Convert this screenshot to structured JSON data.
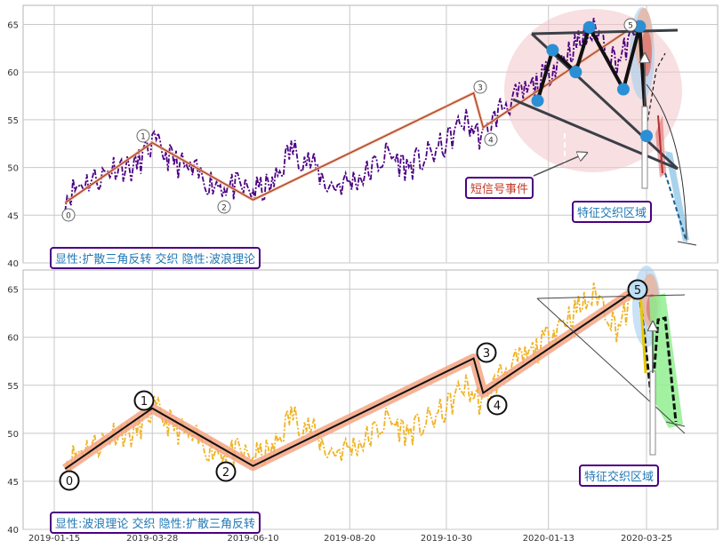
{
  "colors": {
    "grid": "#c8c8c8",
    "frame": "#b4b4b4",
    "price_top": "#4b0082",
    "price_bottom": "#f0b428",
    "wave_fill": "#f4a582",
    "triangle": "#3a3f46",
    "pivot": "#2b8fd6",
    "ellipse": "#f2c4c8",
    "box_border": "#4b0082",
    "box_text_blue": "#1f77b4",
    "box_text_red": "#c0392b",
    "green_zone": "#90ee90"
  },
  "x_tick_labels": [
    "2019-01-15",
    "2019-03-28",
    "2019-06-10",
    "2019-08-20",
    "2019-10-30",
    "2020-01-13",
    "2020-03-25"
  ],
  "chart_data": [
    {
      "type": "line",
      "panel": "top",
      "ylim": [
        40,
        67
      ],
      "y_ticks": [
        40,
        45,
        50,
        55,
        60,
        65
      ],
      "price_series": {
        "x": [
          "2019-01-23",
          "2019-02-05",
          "2019-02-18",
          "2019-03-01",
          "2019-03-14",
          "2019-03-28",
          "2019-04-10",
          "2019-04-25",
          "2019-05-10",
          "2019-05-24",
          "2019-06-10",
          "2019-06-24",
          "2019-07-08",
          "2019-07-22",
          "2019-08-05",
          "2019-08-20",
          "2019-09-03",
          "2019-09-17",
          "2019-10-01",
          "2019-10-15",
          "2019-10-30",
          "2019-11-12",
          "2019-11-26",
          "2019-12-10",
          "2019-12-24",
          "2020-01-07",
          "2020-01-21",
          "2020-02-04",
          "2020-02-18",
          "2020-03-03",
          "2020-03-17"
        ],
        "y": [
          47,
          48.5,
          49,
          50.3,
          49.8,
          52.5,
          51,
          49.5,
          48.5,
          48,
          47.5,
          48,
          52,
          50.5,
          48,
          48.5,
          49.5,
          51.5,
          50,
          51,
          52.5,
          55,
          53,
          56.5,
          57.5,
          59,
          61.5,
          63,
          64.5,
          61,
          64
        ]
      },
      "wave_pivots": {
        "labels": [
          "0",
          "1",
          "2",
          "3",
          "4",
          "5"
        ],
        "x": [
          "2019-01-23",
          "2019-03-28",
          "2019-06-10",
          "2019-11-19",
          "2019-11-26",
          "2020-03-20"
        ],
        "y": [
          46.3,
          52.6,
          46.6,
          57.8,
          54.2,
          65.2
        ]
      },
      "triangle_pivots": {
        "x": [
          "2020-01-05",
          "2020-01-16",
          "2020-02-02",
          "2020-02-12",
          "2020-03-08",
          "2020-03-20",
          "2020-03-25"
        ],
        "y": [
          57,
          62.3,
          60,
          64.7,
          58.2,
          64.8,
          53.3
        ]
      },
      "labels": [
        "显性:扩散三角反转 交织 隐性:波浪理论",
        "短信号事件",
        "特征交织区域"
      ]
    },
    {
      "type": "line",
      "panel": "bottom",
      "ylim": [
        40,
        67
      ],
      "y_ticks": [
        40,
        45,
        50,
        55,
        60,
        65
      ],
      "price_series": {
        "x": [
          "2019-01-23",
          "2019-02-05",
          "2019-02-18",
          "2019-03-01",
          "2019-03-14",
          "2019-03-28",
          "2019-04-10",
          "2019-04-25",
          "2019-05-10",
          "2019-05-24",
          "2019-06-10",
          "2019-06-24",
          "2019-07-08",
          "2019-07-22",
          "2019-08-05",
          "2019-08-20",
          "2019-09-03",
          "2019-09-17",
          "2019-10-01",
          "2019-10-15",
          "2019-10-30",
          "2019-11-12",
          "2019-11-26",
          "2019-12-10",
          "2019-12-24",
          "2020-01-07",
          "2020-01-21",
          "2020-02-04",
          "2020-02-18",
          "2020-03-03",
          "2020-03-17"
        ],
        "y": [
          47,
          48.5,
          49,
          50.3,
          49.8,
          52.5,
          51,
          49.5,
          48.5,
          48,
          47.5,
          48,
          52,
          50.5,
          48,
          48.5,
          49.5,
          51.5,
          50,
          51,
          52.5,
          55,
          53,
          56.5,
          57.5,
          59,
          61.5,
          63,
          64.5,
          61,
          64
        ]
      },
      "wave_pivots": {
        "labels": [
          "0",
          "1",
          "2",
          "3",
          "4",
          "5"
        ],
        "x": [
          "2019-01-23",
          "2019-03-28",
          "2019-06-10",
          "2019-11-19",
          "2019-11-26",
          "2020-03-20"
        ],
        "y": [
          46.3,
          52.6,
          46.6,
          57.8,
          54.2,
          65.2
        ]
      },
      "labels": [
        "显性:波浪理论 交织 隐性:扩散三角反转",
        "特征交织区域"
      ]
    }
  ]
}
